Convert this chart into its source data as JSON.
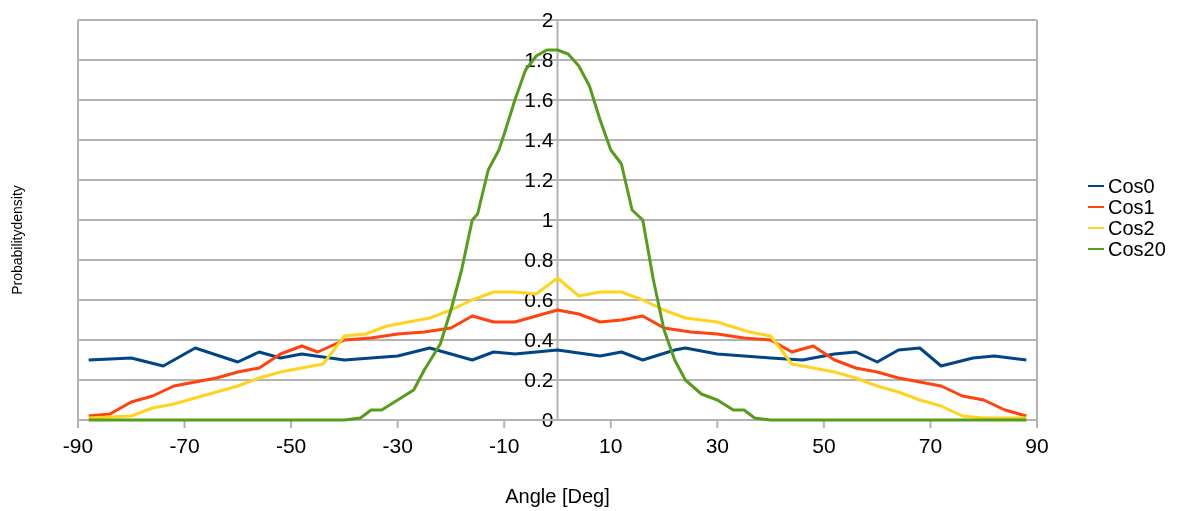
{
  "chart_data": {
    "type": "line",
    "xlabel": "Angle [Deg]",
    "ylabel": "Probabilitydensity",
    "xlim": [
      -90,
      90
    ],
    "xticks": [
      -90,
      -70,
      -50,
      -30,
      -10,
      10,
      30,
      50,
      70,
      90
    ],
    "ylim": [
      0,
      2
    ],
    "yticks": [
      0,
      0.2,
      0.4,
      0.6,
      0.8,
      1,
      1.2,
      1.4,
      1.6,
      1.8,
      2
    ],
    "grid": "y",
    "legend": "right",
    "marker": "none",
    "line_style": "solid",
    "series": [
      {
        "name": "Cos0",
        "color": "#004586",
        "x": [
          -88,
          -80,
          -74,
          -68,
          -60,
          -56,
          -52,
          -48,
          -40,
          -30,
          -24,
          -16,
          -12,
          -8,
          0,
          8,
          12,
          16,
          22,
          24,
          30,
          40,
          46,
          52,
          56,
          60,
          64,
          68,
          72,
          78,
          82,
          88
        ],
        "values": [
          0.3,
          0.31,
          0.27,
          0.36,
          0.29,
          0.34,
          0.31,
          0.33,
          0.3,
          0.32,
          0.36,
          0.3,
          0.34,
          0.33,
          0.35,
          0.32,
          0.34,
          0.3,
          0.35,
          0.36,
          0.33,
          0.31,
          0.3,
          0.33,
          0.34,
          0.29,
          0.35,
          0.36,
          0.27,
          0.31,
          0.32,
          0.3
        ]
      },
      {
        "name": "Cos1",
        "color": "#ff420e",
        "x": [
          -88,
          -84,
          -80,
          -76,
          -72,
          -68,
          -64,
          -60,
          -56,
          -52,
          -48,
          -45,
          -40,
          -35,
          -30,
          -25,
          -20,
          -16,
          -12,
          -8,
          -4,
          0,
          4,
          8,
          12,
          16,
          20,
          25,
          30,
          35,
          40,
          44,
          48,
          52,
          56,
          60,
          64,
          68,
          72,
          76,
          80,
          84,
          88
        ],
        "values": [
          0.02,
          0.03,
          0.09,
          0.12,
          0.17,
          0.19,
          0.21,
          0.24,
          0.26,
          0.33,
          0.37,
          0.34,
          0.4,
          0.41,
          0.43,
          0.44,
          0.46,
          0.52,
          0.49,
          0.49,
          0.52,
          0.55,
          0.53,
          0.49,
          0.5,
          0.52,
          0.46,
          0.44,
          0.43,
          0.41,
          0.4,
          0.34,
          0.37,
          0.3,
          0.26,
          0.24,
          0.21,
          0.19,
          0.17,
          0.12,
          0.1,
          0.05,
          0.02
        ]
      },
      {
        "name": "Cos2",
        "color": "#ffd320",
        "x": [
          -88,
          -80,
          -76,
          -72,
          -68,
          -64,
          -60,
          -56,
          -52,
          -48,
          -44,
          -40,
          -36,
          -32,
          -28,
          -24,
          -20,
          -16,
          -12,
          -8,
          -4,
          0,
          4,
          8,
          12,
          16,
          20,
          24,
          30,
          36,
          40,
          44,
          48,
          52,
          56,
          60,
          64,
          68,
          72,
          76,
          80,
          88
        ],
        "values": [
          0.01,
          0.02,
          0.06,
          0.08,
          0.11,
          0.14,
          0.17,
          0.21,
          0.24,
          0.26,
          0.28,
          0.42,
          0.43,
          0.47,
          0.49,
          0.51,
          0.55,
          0.6,
          0.64,
          0.64,
          0.63,
          0.71,
          0.62,
          0.64,
          0.64,
          0.6,
          0.55,
          0.51,
          0.49,
          0.44,
          0.42,
          0.28,
          0.26,
          0.24,
          0.21,
          0.17,
          0.14,
          0.1,
          0.07,
          0.02,
          0.01,
          0.01
        ]
      },
      {
        "name": "Cos20",
        "color": "#579d1c",
        "x": [
          -88,
          -40,
          -37,
          -35,
          -33,
          -30,
          -27,
          -25,
          -22,
          -20,
          -18,
          -16,
          -15,
          -13,
          -11,
          -10,
          -8,
          -6,
          -4,
          -2,
          0,
          2,
          4,
          6,
          8,
          10,
          12,
          14,
          16,
          18,
          20,
          22,
          24,
          27,
          30,
          33,
          35,
          37,
          40,
          88
        ],
        "values": [
          0,
          0,
          0.01,
          0.05,
          0.05,
          0.1,
          0.15,
          0.25,
          0.38,
          0.55,
          0.75,
          1.0,
          1.03,
          1.25,
          1.35,
          1.43,
          1.6,
          1.75,
          1.82,
          1.85,
          1.85,
          1.83,
          1.77,
          1.67,
          1.5,
          1.35,
          1.28,
          1.05,
          1.0,
          0.7,
          0.45,
          0.3,
          0.2,
          0.13,
          0.1,
          0.05,
          0.05,
          0.01,
          0,
          0
        ]
      }
    ]
  }
}
